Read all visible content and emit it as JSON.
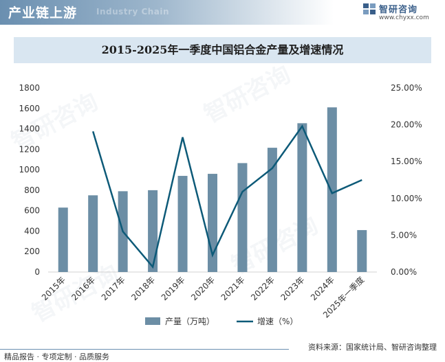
{
  "header": {
    "title": "产业链上游",
    "watermark": "Industry Chain"
  },
  "brand": {
    "name": "智研咨询",
    "url": "www.chyxx.com"
  },
  "watermarks": [
    "智研咨询",
    "智研咨询",
    "智研咨询",
    "智研咨询"
  ],
  "chart_data": {
    "type": "bar",
    "title": "2015-2025年一季度中国铝合金产量及增速情况",
    "categories": [
      "2015年",
      "2016年",
      "2017年",
      "2018年",
      "2019年",
      "2020年",
      "2021年",
      "2022年",
      "2023年",
      "2024年",
      "2025年一季度"
    ],
    "series": [
      {
        "name": "产量（万吨）",
        "kind": "bar",
        "axis": "left",
        "color": "#6c8ea5",
        "values": [
          630,
          750,
          790,
          800,
          940,
          960,
          1065,
          1215,
          1455,
          1610,
          410
        ]
      },
      {
        "name": "增速（%）",
        "kind": "line",
        "axis": "right",
        "color": "#0d5a78",
        "values": [
          null,
          19.1,
          5.5,
          0.7,
          18.3,
          2.3,
          10.9,
          14.1,
          19.8,
          10.7,
          12.5
        ]
      }
    ],
    "yleft": {
      "min": 0,
      "max": 1800,
      "ticks": [
        "0",
        "200",
        "400",
        "600",
        "800",
        "1000",
        "1200",
        "1400",
        "1600",
        "1800"
      ]
    },
    "yright": {
      "min": 0,
      "max": 25,
      "ticks": [
        "0.00%",
        "5.00%",
        "10.00%",
        "15.00%",
        "20.00%",
        "25.00%"
      ]
    },
    "legend": [
      "产量（万吨）",
      "增速（%）"
    ],
    "legend_position": "bottom"
  },
  "source": "资料来源：国家统计局、智研咨询整理",
  "footer": "精品报告 · 专项定制 · 品质服务"
}
